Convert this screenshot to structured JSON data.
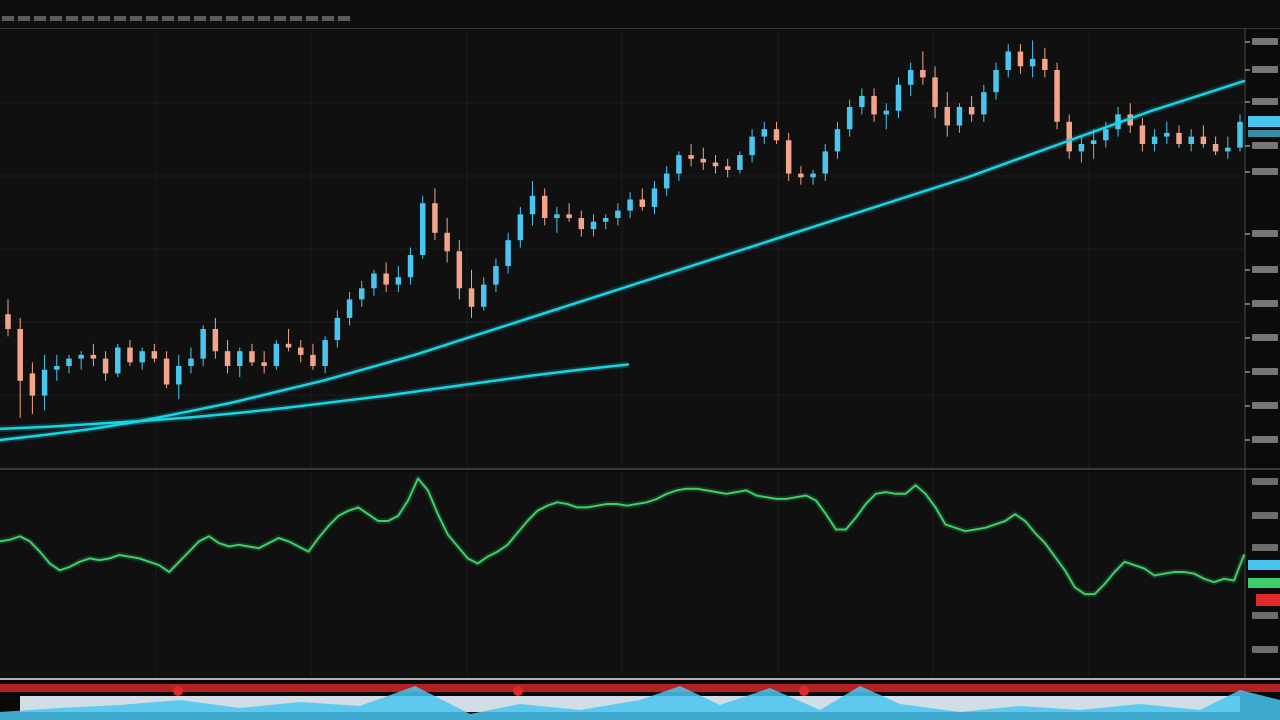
{
  "window": {
    "title": ""
  },
  "colors": {
    "background": "#0b0b0b",
    "panel": "#101010",
    "grid": "#1c1c1c",
    "divider": "#4a4a4a",
    "bull_candle": "#49c6f0",
    "bear_candle": "#f2a58a",
    "moving_average": "#16d6e6",
    "oscillator": "#3ccf6a",
    "accent_red": "#e02828",
    "axis_text": "#cfcfcf"
  },
  "chart_data": [
    {
      "type": "candlestick",
      "title": "",
      "xlabel": "",
      "ylabel": "",
      "ylim": [
        0,
        100
      ],
      "grid": true,
      "legend": "none",
      "candles": [
        [
          34,
          38,
          28,
          30
        ],
        [
          30,
          33,
          6,
          16
        ],
        [
          18,
          21,
          7,
          12
        ],
        [
          12,
          23,
          8,
          19
        ],
        [
          19,
          23,
          16,
          20
        ],
        [
          20,
          23,
          18,
          22
        ],
        [
          22,
          24,
          19,
          23
        ],
        [
          23,
          26,
          20,
          22
        ],
        [
          22,
          24,
          16,
          18
        ],
        [
          18,
          26,
          17,
          25
        ],
        [
          25,
          27,
          20,
          21
        ],
        [
          21,
          25,
          19,
          24
        ],
        [
          24,
          26,
          21,
          22
        ],
        [
          22,
          24,
          14,
          15
        ],
        [
          15,
          23,
          11,
          20
        ],
        [
          20,
          25,
          18,
          22
        ],
        [
          22,
          31,
          20,
          30
        ],
        [
          30,
          33,
          22,
          24
        ],
        [
          24,
          27,
          18,
          20
        ],
        [
          20,
          25,
          17,
          24
        ],
        [
          24,
          26,
          20,
          21
        ],
        [
          21,
          24,
          18,
          20
        ],
        [
          20,
          27,
          19,
          26
        ],
        [
          26,
          30,
          24,
          25
        ],
        [
          25,
          27,
          21,
          23
        ],
        [
          23,
          26,
          19,
          20
        ],
        [
          20,
          28,
          18,
          27
        ],
        [
          27,
          35,
          25,
          33
        ],
        [
          33,
          40,
          31,
          38
        ],
        [
          38,
          43,
          36,
          41
        ],
        [
          41,
          46,
          39,
          45
        ],
        [
          45,
          48,
          40,
          42
        ],
        [
          42,
          47,
          40,
          44
        ],
        [
          44,
          52,
          42,
          50
        ],
        [
          50,
          66,
          49,
          64
        ],
        [
          64,
          68,
          54,
          56
        ],
        [
          56,
          60,
          48,
          51
        ],
        [
          51,
          54,
          38,
          41
        ],
        [
          41,
          46,
          33,
          36
        ],
        [
          36,
          44,
          35,
          42
        ],
        [
          42,
          49,
          40,
          47
        ],
        [
          47,
          56,
          45,
          54
        ],
        [
          54,
          63,
          52,
          61
        ],
        [
          61,
          70,
          58,
          66
        ],
        [
          66,
          68,
          58,
          60
        ],
        [
          60,
          63,
          56,
          61
        ],
        [
          61,
          64,
          59,
          60
        ],
        [
          60,
          62,
          55,
          57
        ],
        [
          57,
          61,
          55,
          59
        ],
        [
          59,
          61,
          57,
          60
        ],
        [
          60,
          64,
          58,
          62
        ],
        [
          62,
          67,
          60,
          65
        ],
        [
          65,
          68,
          62,
          63
        ],
        [
          63,
          70,
          61,
          68
        ],
        [
          68,
          74,
          66,
          72
        ],
        [
          72,
          78,
          70,
          77
        ],
        [
          77,
          80,
          74,
          76
        ],
        [
          76,
          79,
          73,
          75
        ],
        [
          75,
          77,
          72,
          74
        ],
        [
          74,
          76,
          71,
          73
        ],
        [
          73,
          78,
          72,
          77
        ],
        [
          77,
          84,
          75,
          82
        ],
        [
          82,
          86,
          80,
          84
        ],
        [
          84,
          86,
          80,
          81
        ],
        [
          81,
          83,
          70,
          72
        ],
        [
          72,
          74,
          69,
          71
        ],
        [
          71,
          73,
          69,
          72
        ],
        [
          72,
          80,
          70,
          78
        ],
        [
          78,
          86,
          76,
          84
        ],
        [
          84,
          92,
          82,
          90
        ],
        [
          90,
          95,
          88,
          93
        ],
        [
          93,
          95,
          86,
          88
        ],
        [
          88,
          91,
          84,
          89
        ],
        [
          89,
          98,
          87,
          96
        ],
        [
          96,
          102,
          93,
          100
        ],
        [
          100,
          105,
          96,
          98
        ],
        [
          98,
          101,
          87,
          90
        ],
        [
          90,
          94,
          82,
          85
        ],
        [
          85,
          91,
          83,
          90
        ],
        [
          90,
          93,
          86,
          88
        ],
        [
          88,
          96,
          86,
          94
        ],
        [
          94,
          102,
          92,
          100
        ],
        [
          100,
          107,
          98,
          105
        ],
        [
          105,
          107,
          99,
          101
        ],
        [
          101,
          108,
          98,
          103
        ],
        [
          103,
          106,
          98,
          100
        ],
        [
          100,
          102,
          84,
          86
        ],
        [
          86,
          88,
          76,
          78
        ],
        [
          78,
          82,
          75,
          80
        ],
        [
          80,
          84,
          76,
          81
        ],
        [
          81,
          86,
          79,
          84
        ],
        [
          84,
          90,
          82,
          88
        ],
        [
          88,
          91,
          83,
          85
        ],
        [
          85,
          87,
          78,
          80
        ],
        [
          80,
          84,
          78,
          82
        ],
        [
          82,
          86,
          80,
          83
        ],
        [
          83,
          85,
          79,
          80
        ],
        [
          80,
          84,
          78,
          82
        ],
        [
          82,
          85,
          79,
          80
        ],
        [
          80,
          82,
          77,
          78
        ],
        [
          78,
          82,
          76,
          79
        ],
        [
          79,
          88,
          78,
          86
        ]
      ],
      "series": [
        {
          "values": [
            0,
            1.4,
            3,
            5,
            7.5,
            10,
            13,
            16,
            19.5,
            23,
            27,
            31,
            35,
            39,
            43,
            47,
            51,
            55,
            59,
            63,
            67,
            71,
            75.5,
            80,
            84.5,
            89,
            93,
            97
          ]
        },
        {
          "values": [
            3,
            3.6,
            4.4,
            5.2,
            6.2,
            7.4,
            8.8,
            10.4,
            12,
            13.8,
            15.6,
            17.4,
            19,
            20.4
          ]
        }
      ]
    },
    {
      "type": "line",
      "title": "",
      "xlabel": "",
      "ylabel": "",
      "ylim": [
        0,
        100
      ],
      "grid": true,
      "legend": "none",
      "series": [
        {
          "values": [
            58,
            59,
            61,
            58,
            52,
            45,
            41,
            43,
            46,
            48,
            47,
            48,
            50,
            49,
            48,
            46,
            44,
            40,
            46,
            52,
            58,
            61,
            57,
            55,
            56,
            55,
            54,
            57,
            60,
            58,
            55,
            52,
            60,
            67,
            73,
            76,
            78,
            74,
            70,
            70,
            73,
            82,
            95,
            88,
            74,
            62,
            55,
            48,
            45,
            49,
            52,
            56,
            63,
            70,
            76,
            79,
            81,
            80,
            78,
            78,
            79,
            80,
            80,
            79,
            80,
            81,
            83,
            86,
            88,
            89,
            89,
            88,
            87,
            86,
            87,
            88,
            85,
            84,
            83,
            83,
            84,
            85,
            82,
            74,
            65,
            65,
            72,
            80,
            86,
            87,
            86,
            86,
            91,
            86,
            78,
            68,
            66,
            64,
            65,
            66,
            68,
            70,
            74,
            70,
            63,
            57,
            49,
            41,
            31,
            27,
            27,
            33,
            40,
            46,
            44,
            42,
            38,
            39,
            40,
            40,
            39,
            36,
            34,
            36,
            35,
            50
          ]
        }
      ]
    }
  ]
}
